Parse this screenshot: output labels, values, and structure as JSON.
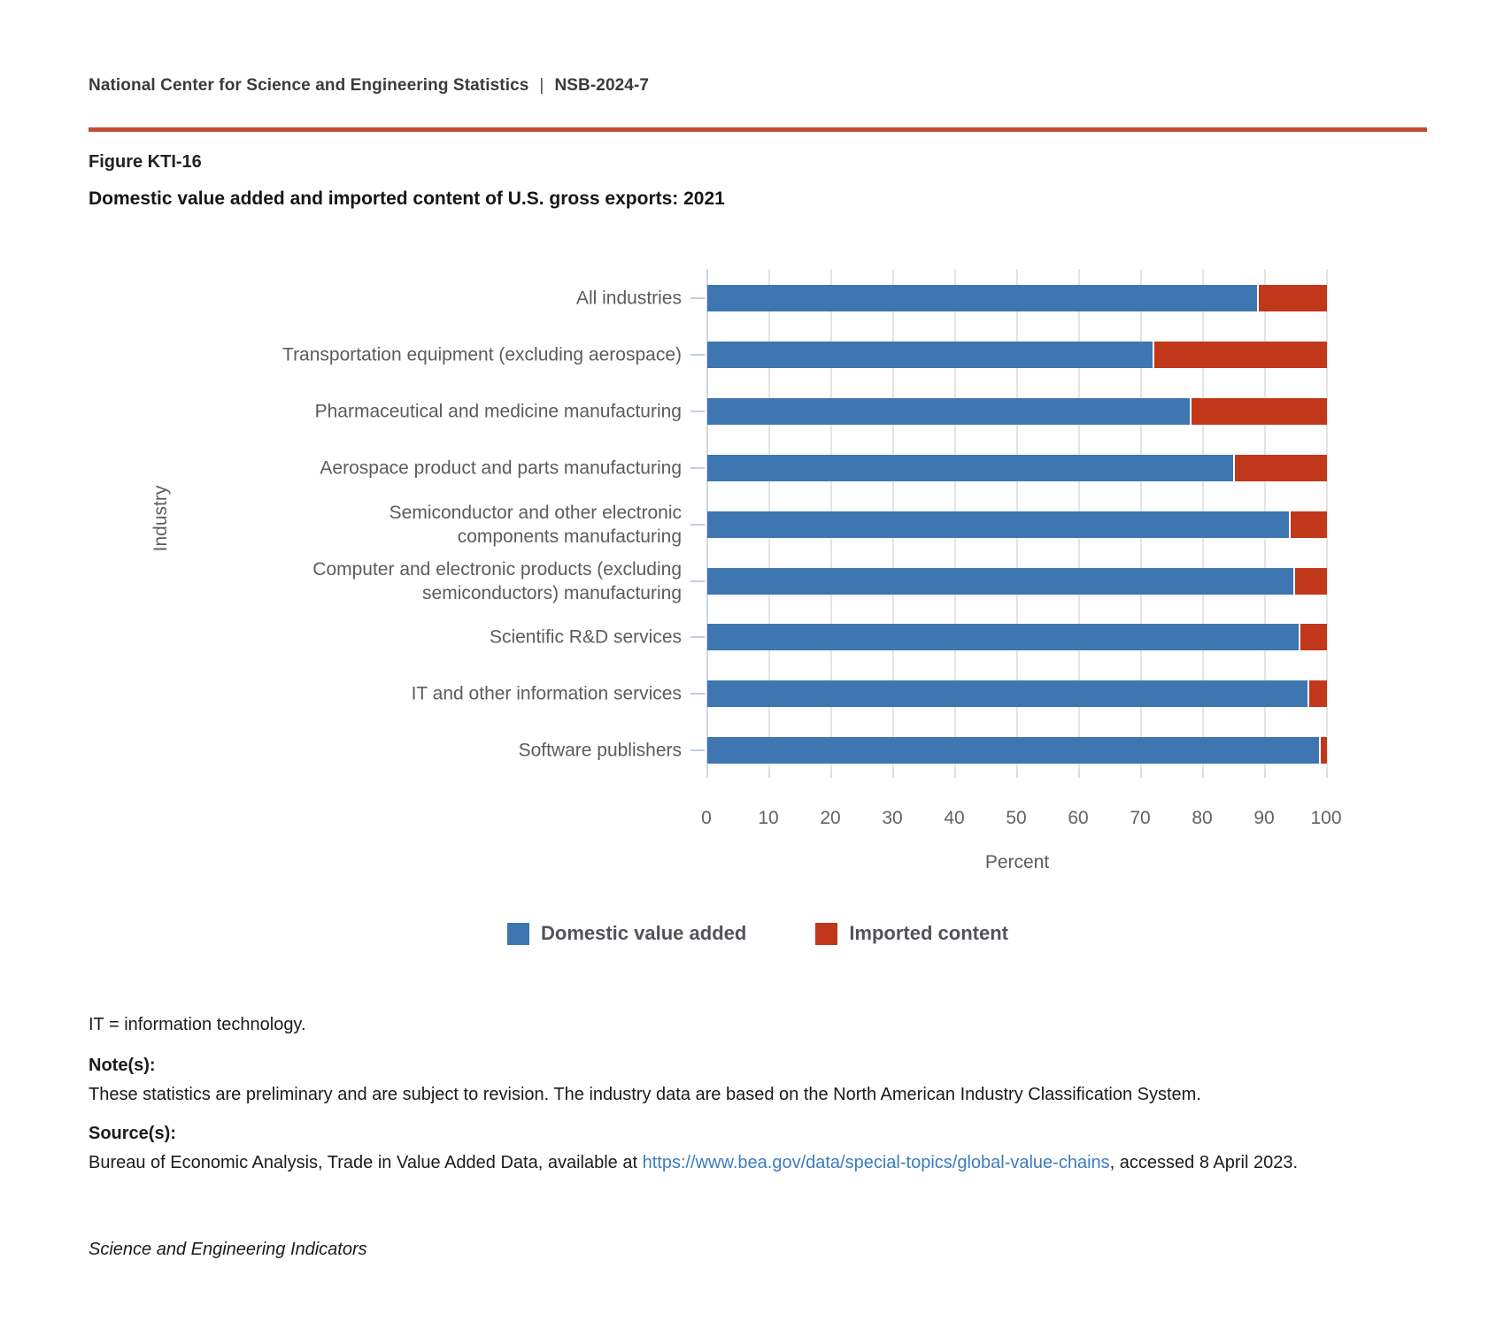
{
  "header": {
    "org": "National Center for Science and Engineering Statistics",
    "sep": "|",
    "report_id": "NSB-2024-7"
  },
  "figure": {
    "label": "Figure KTI-16",
    "title": "Domestic value added and imported content of U.S. gross exports: 2021"
  },
  "colors": {
    "rule": "#c14e33",
    "domestic_blue": "#3d76b0",
    "imported_red": "#c1371a",
    "grid": "#e4e4e4",
    "axis": "#cdd7eb",
    "link": "#3d7bc0"
  },
  "chart_data": {
    "type": "bar",
    "orientation": "horizontal",
    "stacked": true,
    "title": "Domestic value added and imported content of U.S. gross exports: 2021",
    "xlabel": "Percent",
    "ylabel": "Industry",
    "xlim": [
      0,
      100
    ],
    "xticks": [
      0,
      10,
      20,
      30,
      40,
      50,
      60,
      70,
      80,
      90,
      100
    ],
    "grid": true,
    "legend_position": "bottom",
    "categories": [
      "All industries",
      "Transportation equipment (excluding aerospace)",
      "Pharmaceutical and medicine manufacturing",
      "Aerospace product and parts manufacturing",
      "Semiconductor and other electronic components manufacturing",
      "Computer and electronic products (excluding semiconductors) manufacturing",
      "Scientific R&D services",
      "IT and other information services",
      "Software publishers"
    ],
    "category_lines": [
      [
        "All industries"
      ],
      [
        "Transportation equipment (excluding aerospace)"
      ],
      [
        "Pharmaceutical and medicine manufacturing"
      ],
      [
        "Aerospace product and parts manufacturing"
      ],
      [
        "Semiconductor and other electronic",
        "components manufacturing"
      ],
      [
        "Computer and electronic products (excluding",
        "semiconductors) manufacturing"
      ],
      [
        "Scientific R&D services"
      ],
      [
        "IT and other information services"
      ],
      [
        "Software publishers"
      ]
    ],
    "series": [
      {
        "name": "Domestic value added",
        "color": "#3d76b0",
        "values": [
          88.7,
          71.9,
          77.8,
          84.8,
          93.9,
          94.6,
          95.4,
          96.9,
          98.7
        ]
      },
      {
        "name": "Imported content",
        "color": "#c1371a",
        "values": [
          11.3,
          28.1,
          22.2,
          15.2,
          6.1,
          5.4,
          4.6,
          3.1,
          1.3
        ]
      }
    ]
  },
  "footnote": "IT = information technology.",
  "notes": {
    "label": "Note(s):",
    "text": "These statistics are preliminary and are subject to revision. The industry data are based on the North American Industry Classification System."
  },
  "source": {
    "label": "Source(s):",
    "pre": "Bureau of Economic Analysis, Trade in Value Added Data, available at ",
    "link_text": "https://www.bea.gov/data/special-topics/global-value-chains",
    "post": ", accessed 8 April 2023."
  },
  "attribution": "Science and Engineering Indicators"
}
